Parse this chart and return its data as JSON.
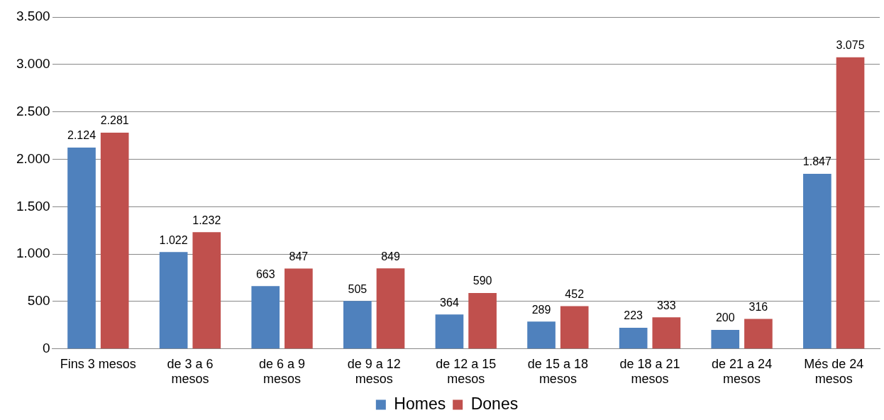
{
  "chart_data": {
    "type": "bar",
    "categories": [
      "Fins 3 mesos",
      "de 3 a 6 mesos",
      "de 6 a 9 mesos",
      "de 9 a 12 mesos",
      "de 12 a 15 mesos",
      "de 15 a 18 mesos",
      "de 18 a 21 mesos",
      "de 21 a 24 mesos",
      "Més de 24 mesos"
    ],
    "series": [
      {
        "name": "Homes",
        "color": "#4f81bd",
        "values": [
          2124,
          1022,
          663,
          505,
          364,
          289,
          223,
          200,
          1847
        ],
        "value_labels": [
          "2.124",
          "1.022",
          "663",
          "505",
          "364",
          "289",
          "223",
          "200",
          "1.847"
        ]
      },
      {
        "name": "Dones",
        "color": "#c0504d",
        "values": [
          2281,
          1232,
          847,
          849,
          590,
          452,
          333,
          316,
          3075
        ],
        "value_labels": [
          "2.281",
          "1.232",
          "847",
          "849",
          "590",
          "452",
          "333",
          "316",
          "3.075"
        ]
      }
    ],
    "ylim": [
      0,
      3500
    ],
    "yticks": [
      {
        "value": 0,
        "label": "0"
      },
      {
        "value": 500,
        "label": "500"
      },
      {
        "value": 1000,
        "label": "1.000"
      },
      {
        "value": 1500,
        "label": "1.500"
      },
      {
        "value": 2000,
        "label": "2.000"
      },
      {
        "value": 2500,
        "label": "2.500"
      },
      {
        "value": 3000,
        "label": "3.000"
      },
      {
        "value": 3500,
        "label": "3.500"
      }
    ],
    "grid": "y",
    "legend": "bottom"
  }
}
